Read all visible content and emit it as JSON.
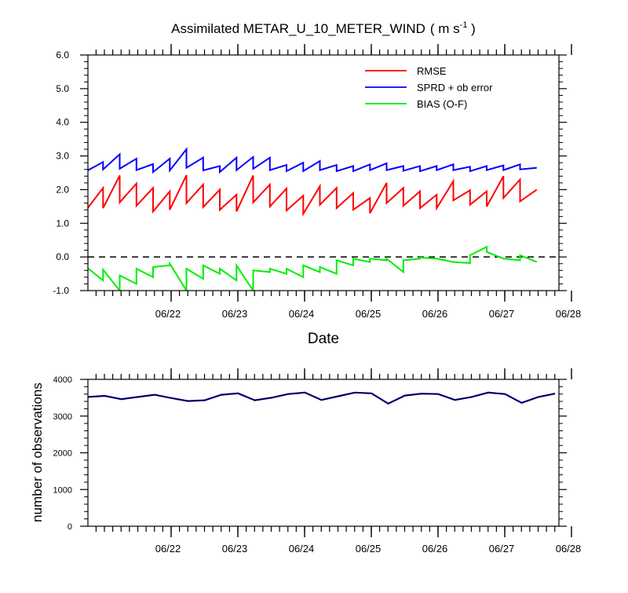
{
  "title": {
    "main": "Assimilated METAR_U_10_METER_WIND",
    "units_open": "( m s",
    "units_exp": "-1",
    "units_close": " )"
  },
  "colors": {
    "rmse": "#ff0000",
    "spread": "#0000ff",
    "bias": "#00ee00",
    "obs_possible": "#0000ff",
    "obs_used": "#000000",
    "zero_line": "#000000"
  },
  "chart_data": [
    {
      "type": "line",
      "xlabel": "Date",
      "ylabel": "",
      "ylim": [
        -1.0,
        6.0
      ],
      "xlim": [
        0,
        14
      ],
      "x_unit_note": "x positions are in 12-hour steps from 06/21 00Z to 06/28 00Z",
      "xticks": [
        {
          "label": "06/22",
          "x": 2
        },
        {
          "label": "06/23",
          "x": 4
        },
        {
          "label": "06/24",
          "x": 6
        },
        {
          "label": "06/25",
          "x": 8
        },
        {
          "label": "06/26",
          "x": 10
        },
        {
          "label": "06/27",
          "x": 12
        },
        {
          "label": "06/28",
          "x": 14
        }
      ],
      "yticks": [
        "-1.0",
        "0.0",
        "1.0",
        "2.0",
        "3.0",
        "4.0",
        "5.0",
        "6.0"
      ],
      "reference_line": {
        "y": 0.0,
        "style": "dashed"
      },
      "legend": {
        "placement": "top-right"
      },
      "series": [
        {
          "name": "RMSE",
          "values": [
            [
              1.4,
              2.05
            ],
            [
              1.45,
              2.42
            ],
            [
              1.62,
              2.18
            ],
            [
              1.52,
              2.05
            ],
            [
              1.35,
              1.95
            ],
            [
              1.4,
              2.43
            ],
            [
              1.6,
              2.15
            ],
            [
              1.48,
              2.0
            ],
            [
              1.4,
              1.85
            ],
            [
              1.35,
              2.42
            ],
            [
              1.62,
              2.15
            ],
            [
              1.5,
              2.03
            ],
            [
              1.38,
              1.82
            ],
            [
              1.28,
              2.1
            ],
            [
              1.55,
              2.05
            ],
            [
              1.45,
              1.9
            ],
            [
              1.4,
              1.75
            ],
            [
              1.3,
              2.2
            ],
            [
              1.6,
              2.05
            ],
            [
              1.52,
              1.95
            ],
            [
              1.45,
              1.85
            ],
            [
              1.45,
              2.25
            ],
            [
              1.68,
              1.98
            ],
            [
              1.55,
              1.95
            ],
            [
              1.5,
              2.4
            ],
            [
              1.75,
              2.3
            ],
            [
              1.65,
              2.0
            ]
          ]
        },
        {
          "name": "SPRD + ob error",
          "values": [
            [
              2.55,
              2.82
            ],
            [
              2.6,
              3.05
            ],
            [
              2.62,
              2.92
            ],
            [
              2.58,
              2.76
            ],
            [
              2.52,
              2.92
            ],
            [
              2.57,
              3.2
            ],
            [
              2.65,
              2.95
            ],
            [
              2.57,
              2.7
            ],
            [
              2.52,
              2.95
            ],
            [
              2.58,
              2.97
            ],
            [
              2.62,
              2.95
            ],
            [
              2.58,
              2.73
            ],
            [
              2.55,
              2.8
            ],
            [
              2.55,
              2.85
            ],
            [
              2.58,
              2.73
            ],
            [
              2.55,
              2.7
            ],
            [
              2.55,
              2.75
            ],
            [
              2.58,
              2.78
            ],
            [
              2.58,
              2.7
            ],
            [
              2.56,
              2.7
            ],
            [
              2.55,
              2.7
            ],
            [
              2.58,
              2.75
            ],
            [
              2.58,
              2.68
            ],
            [
              2.55,
              2.7
            ],
            [
              2.58,
              2.72
            ],
            [
              2.58,
              2.75
            ],
            [
              2.6,
              2.65
            ]
          ]
        },
        {
          "name": "BIAS (O-F)",
          "values": [
            [
              -0.3,
              -0.7
            ],
            [
              -0.38,
              -1.0
            ],
            [
              -0.55,
              -0.8
            ],
            [
              -0.35,
              -0.6
            ],
            [
              -0.3,
              -0.25
            ],
            [
              -0.2,
              -1.0
            ],
            [
              -0.35,
              -0.65
            ],
            [
              -0.25,
              -0.5
            ],
            [
              -0.35,
              -0.7
            ],
            [
              -0.25,
              -1.0
            ],
            [
              -0.4,
              -0.45
            ],
            [
              -0.35,
              -0.5
            ],
            [
              -0.35,
              -0.6
            ],
            [
              -0.25,
              -0.45
            ],
            [
              -0.3,
              -0.5
            ],
            [
              -0.1,
              -0.25
            ],
            [
              -0.05,
              -0.15
            ],
            [
              -0.05,
              -0.1
            ],
            [
              -0.05,
              -0.45
            ],
            [
              -0.1,
              -0.05
            ],
            [
              -0.02,
              -0.05
            ],
            [
              -0.05,
              -0.15
            ],
            [
              -0.15,
              -0.18
            ],
            [
              0.05,
              0.3
            ],
            [
              0.15,
              -0.05
            ],
            [
              -0.05,
              -0.1
            ],
            [
              0.05,
              -0.15
            ]
          ]
        }
      ]
    },
    {
      "type": "line",
      "xlabel": "",
      "ylabel": "number of observations",
      "ylim": [
        0,
        4000
      ],
      "xlim": [
        0,
        14
      ],
      "xticks": [
        {
          "label": "06/22",
          "x": 2
        },
        {
          "label": "06/23",
          "x": 4
        },
        {
          "label": "06/24",
          "x": 6
        },
        {
          "label": "06/25",
          "x": 8
        },
        {
          "label": "06/26",
          "x": 10
        },
        {
          "label": "06/27",
          "x": 12
        },
        {
          "label": "06/28",
          "x": 14
        }
      ],
      "yticks": [
        "0",
        "1000",
        "2000",
        "3000",
        "4000"
      ],
      "series": [
        {
          "role": "possible",
          "values": [
            3520,
            3550,
            3460,
            3520,
            3580,
            3490,
            3410,
            3430,
            3580,
            3620,
            3430,
            3500,
            3600,
            3640,
            3440,
            3540,
            3640,
            3620,
            3340,
            3560,
            3610,
            3600,
            3440,
            3520,
            3640,
            3600,
            3360,
            3520,
            3610
          ]
        },
        {
          "role": "used",
          "values": [
            3520,
            3550,
            3460,
            3520,
            3580,
            3490,
            3410,
            3430,
            3580,
            3620,
            3430,
            3500,
            3600,
            3640,
            3440,
            3540,
            3640,
            3620,
            3340,
            3560,
            3610,
            3600,
            3440,
            3520,
            3640,
            3600,
            3360,
            3520,
            3610
          ]
        }
      ]
    }
  ]
}
